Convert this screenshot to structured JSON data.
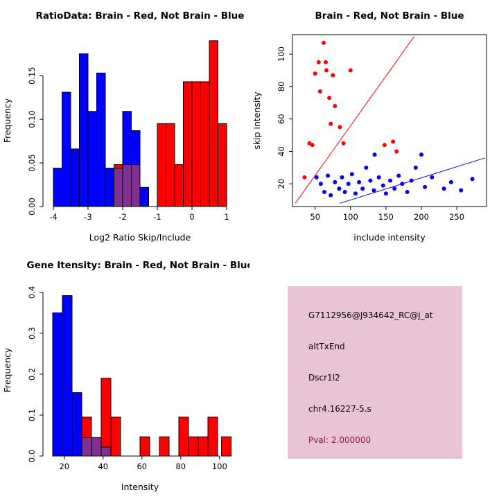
{
  "figure": {
    "bg": "#ffffff"
  },
  "chart_data": [
    {
      "id": "ratio-hist",
      "type": "bar",
      "title": "RatioData: Brain - Red, Not Brain - Blue",
      "xlabel": "Log2 Ratio Skip/Include",
      "ylabel": "Frequency",
      "xlim": [
        -4.3,
        1.3
      ],
      "ylim": [
        0,
        0.197
      ],
      "xticks": [
        -4,
        -3,
        -2,
        -1,
        0,
        1
      ],
      "xtick_labels": [
        "-4",
        "-3",
        "-2",
        "-1",
        "0",
        "1"
      ],
      "yticks": [
        0,
        0.05,
        0.1,
        0.15
      ],
      "ytick_labels": [
        "0.00",
        "0.05",
        "0.10",
        "0.15"
      ],
      "box": false,
      "grid": false,
      "legend": "none",
      "bar_series": [
        {
          "name": "not-brain-blue",
          "color": "#0000ff",
          "bars": [
            [
              -4.0,
              -3.75,
              0.044
            ],
            [
              -3.75,
              -3.5,
              0.131
            ],
            [
              -3.5,
              -3.25,
              0.066
            ],
            [
              -3.25,
              -3.0,
              0.175
            ],
            [
              -3.0,
              -2.75,
              0.109
            ],
            [
              -2.75,
              -2.5,
              0.153
            ],
            [
              -2.5,
              -2.25,
              0.044
            ],
            [
              -2.25,
              -2.0,
              0.044
            ],
            [
              -2.0,
              -1.75,
              0.109
            ],
            [
              -1.75,
              -1.5,
              0.087
            ],
            [
              -1.5,
              -1.25,
              0.022
            ]
          ]
        },
        {
          "name": "brain-red",
          "color": "#ff0000",
          "bars": [
            [
              -2.25,
              -2.0,
              0.048
            ],
            [
              -2.0,
              -1.75,
              0.048
            ],
            [
              -1.75,
              -1.5,
              0.048
            ],
            [
              -1.0,
              -0.75,
              0.095
            ],
            [
              -0.75,
              -0.5,
              0.095
            ],
            [
              -0.5,
              -0.25,
              0.048
            ],
            [
              -0.25,
              0.0,
              0.143
            ],
            [
              0.0,
              0.25,
              0.143
            ],
            [
              0.25,
              0.5,
              0.143
            ],
            [
              0.5,
              0.75,
              0.19
            ],
            [
              0.75,
              1.0,
              0.095
            ]
          ]
        },
        {
          "name": "overlap-purple",
          "color": "#803090",
          "bars": [
            [
              -2.25,
              -2.0,
              0.044
            ],
            [
              -2.0,
              -1.75,
              0.048
            ],
            [
              -1.75,
              -1.5,
              0.048
            ]
          ]
        }
      ]
    },
    {
      "id": "scatter",
      "type": "scatter",
      "title": "Brain - Red, Not Brain - Blue",
      "xlabel": "include intensity",
      "ylabel": "skip intensity",
      "xlim": [
        18,
        292
      ],
      "ylim": [
        6,
        112
      ],
      "xticks": [
        50,
        100,
        150,
        200,
        250
      ],
      "yticks": [
        20,
        40,
        60,
        80,
        100
      ],
      "box": true,
      "grid": false,
      "legend": "none",
      "point_series": [
        {
          "name": "brain-red",
          "color": "#ff0000",
          "points": [
            [
              35,
              24
            ],
            [
              42,
              45
            ],
            [
              46,
              44
            ],
            [
              50,
              88
            ],
            [
              55,
              95
            ],
            [
              57,
              77
            ],
            [
              62,
              107
            ],
            [
              65,
              95
            ],
            [
              66,
              90
            ],
            [
              70,
              73
            ],
            [
              75,
              87
            ],
            [
              78,
              68
            ],
            [
              72,
              57
            ],
            [
              85,
              55
            ],
            [
              90,
              45
            ],
            [
              100,
              90
            ],
            [
              148,
              44
            ],
            [
              160,
              46
            ],
            [
              165,
              40
            ]
          ]
        },
        {
          "name": "not-brain-blue",
          "color": "#0000ff",
          "points": [
            [
              52,
              24
            ],
            [
              58,
              20
            ],
            [
              63,
              15
            ],
            [
              68,
              25
            ],
            [
              72,
              13
            ],
            [
              78,
              21
            ],
            [
              84,
              17
            ],
            [
              88,
              24
            ],
            [
              92,
              15
            ],
            [
              97,
              20
            ],
            [
              102,
              26
            ],
            [
              107,
              14
            ],
            [
              112,
              21
            ],
            [
              117,
              17
            ],
            [
              122,
              30
            ],
            [
              128,
              22
            ],
            [
              133,
              16
            ],
            [
              134,
              38
            ],
            [
              140,
              24
            ],
            [
              146,
              19
            ],
            [
              150,
              14
            ],
            [
              156,
              22
            ],
            [
              162,
              17
            ],
            [
              168,
              25
            ],
            [
              173,
              20
            ],
            [
              180,
              15
            ],
            [
              186,
              22
            ],
            [
              192,
              30
            ],
            [
              200,
              38
            ],
            [
              205,
              18
            ],
            [
              215,
              24
            ],
            [
              232,
              17
            ],
            [
              242,
              21
            ],
            [
              256,
              16
            ],
            [
              272,
              23
            ]
          ]
        }
      ],
      "lines": [
        {
          "name": "brain-fit-line",
          "color": "#ff0000",
          "x1": 22,
          "y1": 8,
          "x2": 190,
          "y2": 111
        },
        {
          "name": "not-brain-fit-line",
          "color": "#0000ff",
          "x1": 85,
          "y1": 8,
          "x2": 290,
          "y2": 36
        }
      ]
    },
    {
      "id": "gene-hist",
      "type": "bar",
      "title": "Gene Itensity: Brain - Red, Not Brain - Blue",
      "xlabel": "Intensity",
      "ylabel": "Frequency",
      "xlim": [
        9,
        109
      ],
      "ylim": [
        0,
        0.42
      ],
      "xticks": [
        20,
        40,
        60,
        80,
        100
      ],
      "xtick_labels": [
        "20",
        "40",
        "60",
        "80",
        "100"
      ],
      "yticks": [
        0,
        0.1,
        0.2,
        0.3,
        0.4
      ],
      "ytick_labels": [
        "0.0",
        "0.1",
        "0.2",
        "0.3",
        "0.4"
      ],
      "box": false,
      "grid": false,
      "legend": "none",
      "bar_series": [
        {
          "name": "not-brain-blue",
          "color": "#0000ff",
          "bars": [
            [
              14,
              19,
              0.35
            ],
            [
              19,
              24,
              0.392
            ],
            [
              24,
              29,
              0.155
            ],
            [
              29,
              34,
              0.045
            ],
            [
              34,
              39,
              0.045
            ],
            [
              39,
              44,
              0.022
            ]
          ]
        },
        {
          "name": "brain-red",
          "color": "#ff0000",
          "bars": [
            [
              29,
              34,
              0.095
            ],
            [
              34,
              39,
              0.045
            ],
            [
              39,
              44,
              0.19
            ],
            [
              44,
              49,
              0.095
            ],
            [
              59,
              64,
              0.047
            ],
            [
              69,
              74,
              0.047
            ],
            [
              79,
              84,
              0.095
            ],
            [
              84,
              89,
              0.047
            ],
            [
              89,
              94,
              0.047
            ],
            [
              94,
              99,
              0.095
            ],
            [
              101,
              106,
              0.047
            ]
          ]
        },
        {
          "name": "overlap-purple",
          "color": "#803090",
          "bars": [
            [
              29,
              34,
              0.045
            ],
            [
              34,
              39,
              0.045
            ],
            [
              39,
              44,
              0.022
            ]
          ]
        }
      ]
    }
  ],
  "info_panel": {
    "bg": "#e8c4d4",
    "lines": [
      {
        "text": "G7112956@J934642_RC@j_at",
        "color": "#000000"
      },
      {
        "text": "altTxEnd",
        "color": "#000000"
      },
      {
        "text": "Dscr1l2",
        "color": "#000000"
      },
      {
        "text": "chr4.16227-5.s",
        "color": "#000000"
      },
      {
        "text": "Pval: 2.000000",
        "color": "#8b1a42"
      }
    ]
  }
}
